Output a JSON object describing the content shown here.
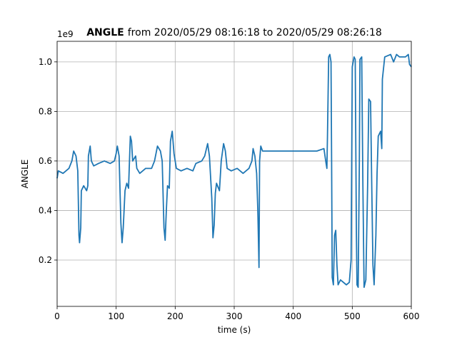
{
  "chart_data": {
    "type": "line",
    "title_parts": [
      "ANGLE",
      "from 2020/05/29 08:16:18 to 2020/05/29 08:26:18"
    ],
    "x_label": "time (s)",
    "y_label": "ANGLE",
    "y_offset_label": "1e9",
    "color": "#1f77b4",
    "grid": true,
    "xlim": [
      0,
      600
    ],
    "xticks": [
      0,
      100,
      200,
      300,
      400,
      500,
      600
    ],
    "ylim": [
      0.013,
      1.083
    ],
    "yticks": [
      0.2,
      0.4,
      0.6,
      0.8,
      {
        "value": 1,
        "label": "1.0"
      }
    ],
    "x": [
      0,
      2,
      10,
      20,
      25,
      28,
      32,
      35,
      37,
      38,
      40,
      41,
      45,
      50,
      52,
      53,
      56,
      58,
      62,
      70,
      80,
      90,
      97,
      100,
      102,
      105,
      108,
      110,
      112,
      115,
      118,
      121,
      124,
      126,
      128,
      133,
      135,
      140,
      150,
      160,
      165,
      170,
      175,
      178,
      181,
      183,
      185,
      187,
      190,
      192,
      195,
      198,
      202,
      210,
      220,
      230,
      235,
      245,
      250,
      255,
      258,
      262,
      264,
      266,
      268,
      270,
      275,
      278,
      282,
      285,
      288,
      295,
      305,
      315,
      325,
      330,
      332,
      335,
      338,
      340,
      342,
      343,
      345,
      348,
      360,
      380,
      400,
      420,
      440,
      452,
      455,
      457,
      458,
      460,
      462,
      464,
      465,
      466,
      468,
      470,
      472,
      474,
      476,
      480,
      490,
      495,
      498,
      500,
      503,
      505,
      507,
      508,
      510,
      512,
      513,
      516,
      518,
      520,
      523,
      526,
      528,
      531,
      533,
      535,
      537,
      540,
      542,
      544,
      548,
      550,
      551,
      555,
      565,
      570,
      575,
      580,
      590,
      595,
      597,
      600
    ],
    "values": [
      0.53,
      0.56,
      0.55,
      0.57,
      0.6,
      0.64,
      0.62,
      0.56,
      0.3,
      0.27,
      0.33,
      0.48,
      0.5,
      0.48,
      0.5,
      0.62,
      0.66,
      0.6,
      0.58,
      0.59,
      0.6,
      0.59,
      0.6,
      0.63,
      0.66,
      0.62,
      0.35,
      0.27,
      0.33,
      0.48,
      0.51,
      0.49,
      0.7,
      0.68,
      0.6,
      0.62,
      0.57,
      0.55,
      0.57,
      0.57,
      0.6,
      0.66,
      0.64,
      0.6,
      0.33,
      0.28,
      0.4,
      0.5,
      0.49,
      0.68,
      0.72,
      0.63,
      0.57,
      0.56,
      0.57,
      0.56,
      0.59,
      0.6,
      0.62,
      0.67,
      0.62,
      0.45,
      0.29,
      0.34,
      0.47,
      0.51,
      0.48,
      0.6,
      0.67,
      0.64,
      0.57,
      0.56,
      0.57,
      0.55,
      0.57,
      0.6,
      0.65,
      0.62,
      0.55,
      0.4,
      0.17,
      0.6,
      0.66,
      0.64,
      0.64,
      0.64,
      0.64,
      0.64,
      0.64,
      0.65,
      0.6,
      0.57,
      0.7,
      1.02,
      1.03,
      1.0,
      0.6,
      0.13,
      0.1,
      0.3,
      0.32,
      0.18,
      0.1,
      0.12,
      0.1,
      0.11,
      0.2,
      0.98,
      1.02,
      1.01,
      0.3,
      0.1,
      0.09,
      0.6,
      1.01,
      1.02,
      0.5,
      0.09,
      0.12,
      0.5,
      0.85,
      0.84,
      0.5,
      0.18,
      0.1,
      0.3,
      0.55,
      0.7,
      0.72,
      0.65,
      0.93,
      1.02,
      1.03,
      1.0,
      1.03,
      1.02,
      1.02,
      1.03,
      0.99,
      0.98
    ]
  }
}
